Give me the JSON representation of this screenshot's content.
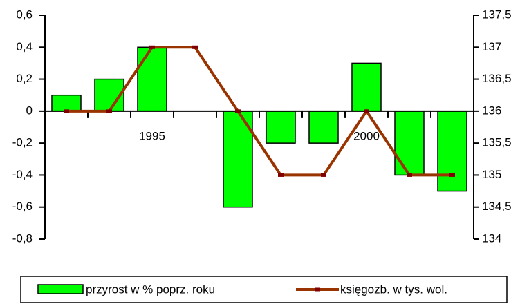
{
  "chart_data": {
    "type": "bar",
    "categories": [
      null,
      null,
      "1995",
      null,
      null,
      null,
      null,
      "2000",
      null,
      null
    ],
    "series": [
      {
        "name": "przyrost w % poprz. roku",
        "type": "bar",
        "color": "#00ff00",
        "values": [
          0.1,
          0.2,
          0.4,
          0,
          -0.6,
          -0.2,
          -0.2,
          0.3,
          -0.4,
          -0.5
        ]
      },
      {
        "name": "księgozb. w tys. wol.",
        "type": "line",
        "axis": "y2",
        "color": "#993300",
        "marker_color": "#800000",
        "values": [
          136,
          136,
          137,
          137,
          136,
          135,
          135,
          136,
          135,
          135
        ]
      }
    ],
    "ylim": [
      -0.8,
      0.6
    ],
    "yticks": [
      {
        "value": 0.6,
        "label": "0,6"
      },
      {
        "value": 0.4,
        "label": "0,4"
      },
      {
        "value": 0.2,
        "label": "0,2"
      },
      0,
      {
        "value": -0.2,
        "label": "-0,2"
      },
      {
        "value": -0.4,
        "label": "-0,4"
      },
      {
        "value": -0.6,
        "label": "-0,6"
      },
      {
        "value": -0.8,
        "label": "-0,8"
      }
    ],
    "y2lim": [
      134,
      137.5
    ],
    "y2ticks": [
      {
        "value": 137.5,
        "label": "137,5"
      },
      137,
      {
        "value": 136.5,
        "label": "136,5"
      },
      136,
      {
        "value": 135.5,
        "label": "135,5"
      },
      135,
      {
        "value": 134.5,
        "label": "134,5"
      },
      134
    ],
    "grid": false,
    "legend": "bottom"
  }
}
